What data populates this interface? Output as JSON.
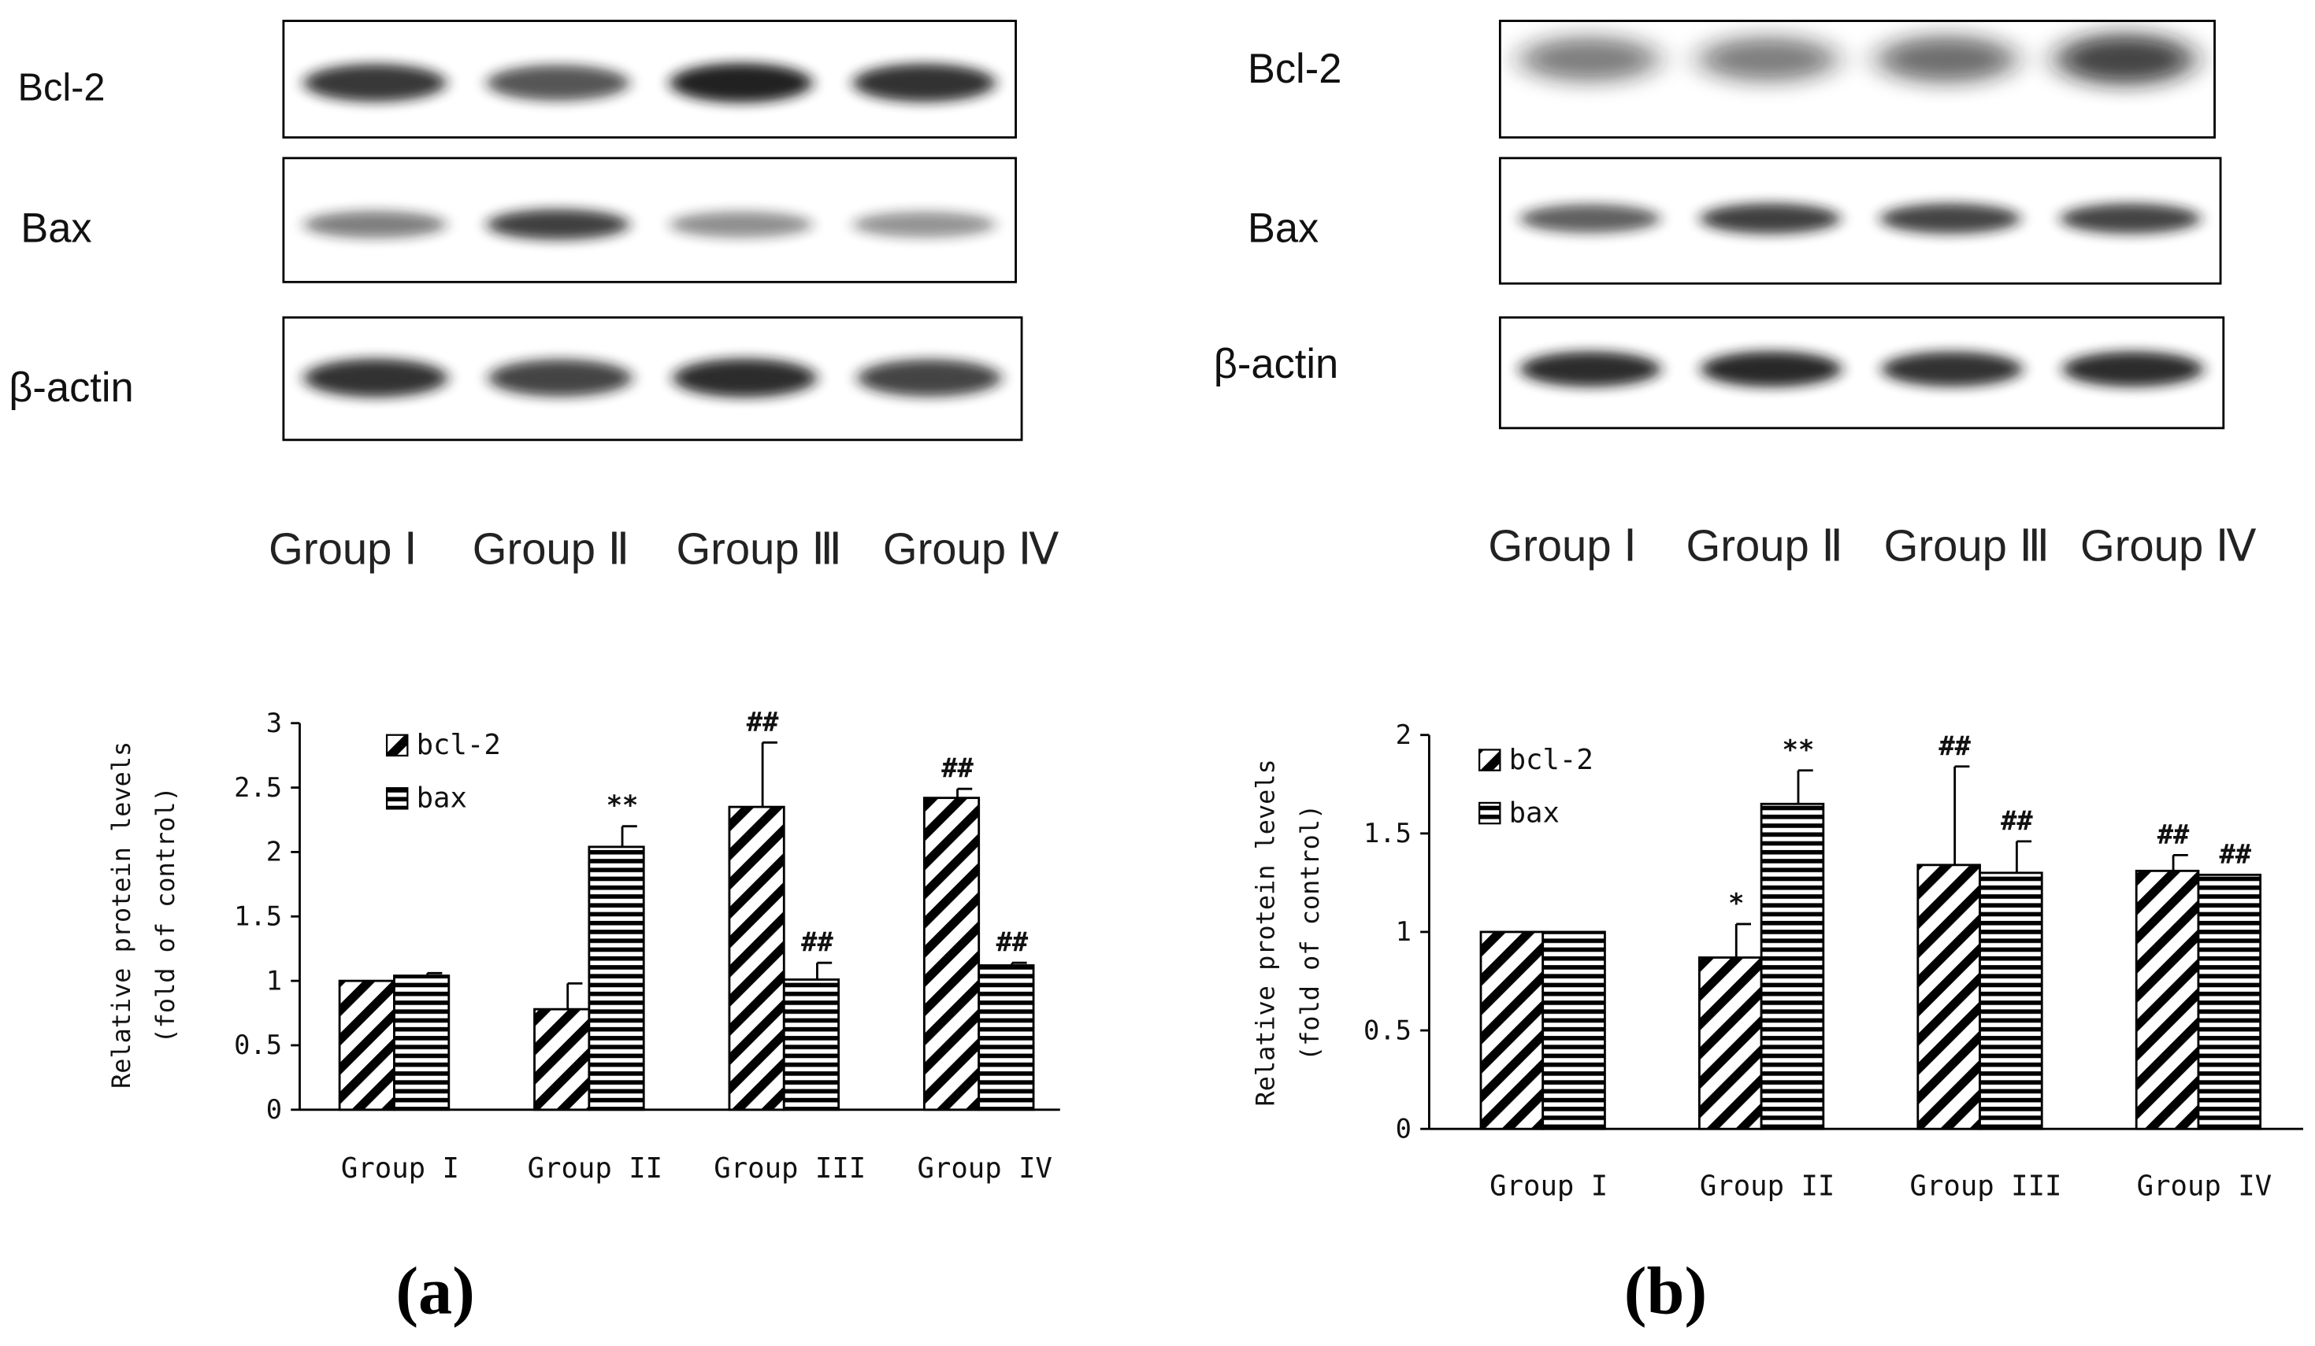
{
  "figure": {
    "blots": [
      {
        "panel": "a",
        "rows": [
          {
            "label": "Bcl-2",
            "intensities": [
              0.85,
              0.72,
              0.95,
              0.88
            ]
          },
          {
            "label": "Bax",
            "intensities": [
              0.55,
              0.82,
              0.48,
              0.46
            ]
          },
          {
            "label": "β-actin",
            "intensities": [
              0.88,
              0.8,
              0.9,
              0.8
            ]
          }
        ],
        "groups": [
          "Group Ⅰ",
          "Group Ⅱ",
          "Group Ⅲ",
          "Group Ⅳ"
        ]
      },
      {
        "panel": "b",
        "rows": [
          {
            "label": "Bcl-2",
            "intensities": [
              0.55,
              0.55,
              0.62,
              0.8
            ]
          },
          {
            "label": "Bax",
            "intensities": [
              0.68,
              0.82,
              0.8,
              0.8
            ]
          },
          {
            "label": "β-actin",
            "intensities": [
              0.9,
              0.92,
              0.88,
              0.9
            ]
          }
        ],
        "groups": [
          "Group Ⅰ",
          "Group Ⅱ",
          "Group Ⅲ",
          "Group Ⅳ"
        ]
      }
    ],
    "panel_labels": [
      "(a)",
      "(b)"
    ]
  },
  "colors": {
    "bar_stroke": "#000000",
    "bar_fill": "#ffffff",
    "hatch": "#000000",
    "blot_band": "#141414",
    "blot_bg": "#ffffff"
  },
  "chart_data": [
    {
      "type": "bar",
      "title": "",
      "categories": [
        "Group  I",
        "Group  II",
        "Group  III",
        "Group  IV"
      ],
      "series": [
        {
          "name": "bcl-2",
          "pattern": "diagonal",
          "values": [
            1.0,
            0.78,
            2.35,
            2.42
          ],
          "errors": [
            0.0,
            0.2,
            0.5,
            0.07
          ],
          "annotations": [
            "",
            "",
            "##",
            "##"
          ]
        },
        {
          "name": "bax",
          "pattern": "horizontal",
          "values": [
            1.04,
            2.04,
            1.01,
            1.12
          ],
          "errors": [
            0.02,
            0.16,
            0.13,
            0.02
          ],
          "annotations": [
            "",
            "**",
            "##",
            "##"
          ]
        }
      ],
      "xlabel": "",
      "ylabel": "Relative protein levels",
      "ylabel2": "(fold of control)",
      "ylim": [
        0,
        3
      ],
      "yticks": [
        0,
        0.5,
        1,
        1.5,
        2,
        2.5,
        3
      ],
      "yticklabels": [
        "0",
        "0.5",
        "1",
        "1.5",
        "2",
        "2.5",
        "3"
      ],
      "legend_position": "top-left",
      "grid": false
    },
    {
      "type": "bar",
      "title": "",
      "categories": [
        "Group  I",
        "Group  II",
        "Group  III",
        "Group  IV"
      ],
      "series": [
        {
          "name": "bcl-2",
          "pattern": "diagonal",
          "values": [
            1.0,
            0.87,
            1.34,
            1.31
          ],
          "errors": [
            0.0,
            0.17,
            0.5,
            0.08
          ],
          "annotations": [
            "",
            "*",
            "##",
            "##"
          ]
        },
        {
          "name": "bax",
          "pattern": "horizontal",
          "values": [
            1.0,
            1.65,
            1.3,
            1.29
          ],
          "errors": [
            0.01,
            0.17,
            0.16,
            0.01
          ],
          "annotations": [
            "",
            "**",
            "##",
            "##"
          ]
        }
      ],
      "xlabel": "",
      "ylabel": "Relative protein levels",
      "ylabel2": "(fold of control)",
      "ylim": [
        0,
        2
      ],
      "yticks": [
        0,
        0.5,
        1,
        1.5,
        2
      ],
      "yticklabels": [
        "0",
        "0.5",
        "1",
        "1.5",
        "2"
      ],
      "legend_position": "top-left",
      "grid": false
    }
  ]
}
